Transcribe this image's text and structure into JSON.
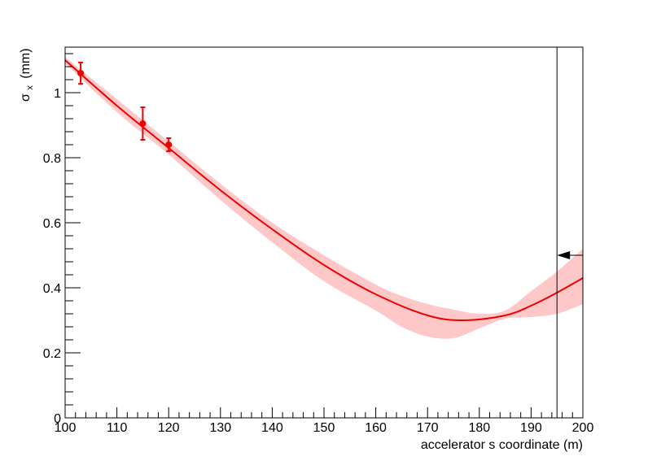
{
  "chart_data": {
    "type": "line",
    "xlabel": "accelerator s coordinate (m)",
    "ylabel_symbol": "σ",
    "ylabel_subscript": "x",
    "ylabel_unit": "(mm)",
    "xlim": [
      100,
      200
    ],
    "ylim": [
      0,
      1.14
    ],
    "xticks": [
      100,
      110,
      120,
      130,
      140,
      150,
      160,
      170,
      180,
      190,
      200
    ],
    "yticks": [
      0,
      0.2,
      0.4,
      0.6,
      0.8,
      1
    ],
    "grid": false,
    "colors": {
      "curve": "#ee0000",
      "band": "#ffc8c8",
      "frame": "#000000"
    },
    "measurements": [
      {
        "x": 103,
        "y": 1.06,
        "err": 0.033
      },
      {
        "x": 115,
        "y": 0.905,
        "err": 0.05
      },
      {
        "x": 120,
        "y": 0.84,
        "err": 0.02
      }
    ],
    "fit_curve": {
      "x": [
        100,
        110,
        120,
        130,
        140,
        150,
        160,
        170,
        177,
        185,
        190,
        195,
        200
      ],
      "y": [
        1.1,
        0.96,
        0.83,
        0.7,
        0.58,
        0.47,
        0.38,
        0.315,
        0.3,
        0.315,
        0.345,
        0.385,
        0.43
      ]
    },
    "error_band": {
      "x": [
        100,
        110,
        120,
        130,
        140,
        150,
        160,
        165,
        170,
        175,
        180,
        185,
        190,
        195,
        200
      ],
      "upper": [
        1.11,
        0.98,
        0.85,
        0.72,
        0.6,
        0.5,
        0.41,
        0.375,
        0.35,
        0.333,
        0.32,
        0.33,
        0.39,
        0.45,
        0.52
      ],
      "lower": [
        1.09,
        0.94,
        0.81,
        0.67,
        0.54,
        0.42,
        0.33,
        0.28,
        0.25,
        0.245,
        0.275,
        0.305,
        0.31,
        0.32,
        0.35
      ]
    },
    "marker_line": {
      "x": 195
    },
    "marker_arrow": {
      "y": 0.5,
      "x_from": 200,
      "x_to": 195
    }
  }
}
